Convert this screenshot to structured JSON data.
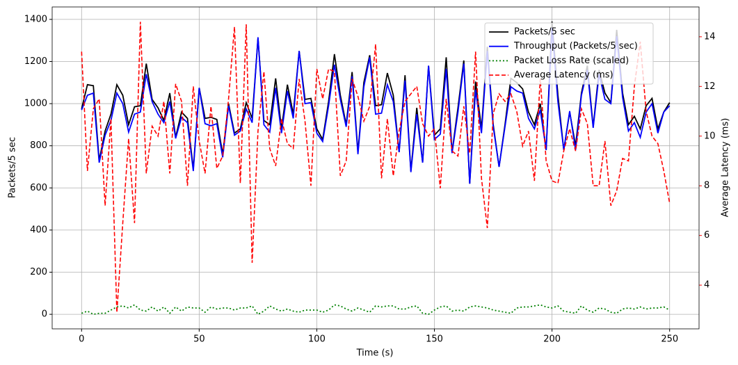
{
  "chart_data": {
    "type": "line",
    "xlabel": "Time (s)",
    "ylabel": "Packets/5 sec",
    "y2label": "Average Latency (ms)",
    "x": [
      0,
      2.5,
      5,
      7.5,
      10,
      12.5,
      15,
      17.5,
      20,
      22.5,
      25,
      27.5,
      30,
      32.5,
      35,
      37.5,
      40,
      42.5,
      45,
      47.5,
      50,
      52.5,
      55,
      57.5,
      60,
      62.5,
      65,
      67.5,
      70,
      72.5,
      75,
      77.5,
      80,
      82.5,
      85,
      87.5,
      90,
      92.5,
      95,
      97.5,
      100,
      102.5,
      105,
      107.5,
      110,
      112.5,
      115,
      117.5,
      120,
      122.5,
      125,
      127.5,
      130,
      132.5,
      135,
      137.5,
      140,
      142.5,
      145,
      147.5,
      150,
      152.5,
      155,
      157.5,
      160,
      162.5,
      165,
      167.5,
      170,
      172.5,
      175,
      177.5,
      180,
      182.5,
      185,
      187.5,
      190,
      192.5,
      195,
      197.5,
      200,
      202.5,
      205,
      207.5,
      210,
      212.5,
      215,
      217.5,
      220,
      222.5,
      225,
      227.5,
      230,
      232.5,
      235,
      237.5,
      240,
      242.5,
      245,
      247.5,
      250
    ],
    "series": [
      {
        "name": "Packets/5 sec",
        "color": "#000000",
        "dash": "solid",
        "width": 1.8,
        "values": [
          975,
          1090,
          1085,
          730,
          870,
          950,
          1090,
          1040,
          900,
          985,
          990,
          1190,
          1020,
          980,
          920,
          1050,
          840,
          960,
          930,
          690,
          1075,
          930,
          935,
          925,
          760,
          1000,
          860,
          880,
          1005,
          930,
          1310,
          920,
          900,
          1120,
          880,
          1090,
          950,
          1250,
          1020,
          1025,
          880,
          830,
          1010,
          1235,
          1040,
          900,
          1150,
          770,
          1100,
          1230,
          990,
          995,
          1145,
          1040,
          770,
          1135,
          680,
          980,
          720,
          1180,
          850,
          880,
          1220,
          770,
          980,
          1205,
          620,
          1105,
          880,
          1270,
          900,
          700,
          900,
          1120,
          1100,
          1070,
          960,
          900,
          1000,
          780,
          1390,
          1040,
          780,
          960,
          800,
          1050,
          1180,
          890,
          1160,
          1050,
          1005,
          1350,
          1050,
          900,
          940,
          880,
          990,
          1025,
          880,
          960,
          1005
        ]
      },
      {
        "name": "Throughput (Packets/5 sec)",
        "color": "#0000ff",
        "dash": "solid",
        "width": 1.8,
        "values": [
          970,
          1040,
          1050,
          720,
          850,
          920,
          1050,
          1000,
          865,
          950,
          960,
          1140,
          1010,
          950,
          910,
          1010,
          835,
          935,
          910,
          680,
          1075,
          905,
          895,
          905,
          745,
          990,
          850,
          870,
          975,
          910,
          1315,
          900,
          865,
          1075,
          860,
          1060,
          930,
          1250,
          1000,
          1005,
          860,
          820,
          990,
          1185,
          1020,
          890,
          1130,
          760,
          1080,
          1220,
          950,
          955,
          1090,
          1010,
          770,
          1110,
          675,
          950,
          720,
          1180,
          830,
          855,
          1165,
          765,
          960,
          1190,
          620,
          1065,
          860,
          1250,
          890,
          700,
          890,
          1080,
          1060,
          1050,
          930,
          880,
          970,
          780,
          1360,
          1010,
          780,
          965,
          780,
          1040,
          1160,
          885,
          1140,
          1020,
          1000,
          1320,
          1030,
          870,
          910,
          840,
          960,
          1000,
          860,
          960,
          990
        ]
      },
      {
        "name": "Packet Loss Rate (scaled)",
        "color": "#008000",
        "dash": "dotted",
        "width": 1.8,
        "values": [
          5,
          15,
          0,
          5,
          5,
          20,
          35,
          40,
          30,
          45,
          20,
          15,
          35,
          15,
          35,
          5,
          35,
          15,
          35,
          30,
          30,
          10,
          35,
          25,
          30,
          30,
          20,
          30,
          30,
          40,
          0,
          15,
          40,
          25,
          15,
          25,
          15,
          10,
          20,
          20,
          20,
          10,
          20,
          45,
          40,
          25,
          15,
          30,
          20,
          10,
          40,
          35,
          40,
          40,
          25,
          25,
          35,
          40,
          5,
          0,
          20,
          35,
          40,
          15,
          20,
          15,
          35,
          40,
          35,
          30,
          20,
          15,
          10,
          5,
          30,
          35,
          35,
          40,
          45,
          35,
          30,
          40,
          15,
          10,
          5,
          40,
          20,
          10,
          30,
          25,
          10,
          5,
          25,
          30,
          25,
          35,
          25,
          30,
          30,
          35,
          20
        ]
      },
      {
        "name": "Average Latency (ms)",
        "color": "#ff0000",
        "dash": "dashed",
        "width": 1.6,
        "axis": "y2",
        "values": [
          13.4,
          8.6,
          11.1,
          11.5,
          7.2,
          10.7,
          2.9,
          6.5,
          9.9,
          6.5,
          14.6,
          8.5,
          10.4,
          10.0,
          11.4,
          8.5,
          12.1,
          11.4,
          8.0,
          12.0,
          9.8,
          8.5,
          11.2,
          8.7,
          9.2,
          11.5,
          14.4,
          8.1,
          14.5,
          4.9,
          10.2,
          12.6,
          9.5,
          8.8,
          10.7,
          9.7,
          9.5,
          12.3,
          10.6,
          8.0,
          12.7,
          11.5,
          12.7,
          12.6,
          8.4,
          9.0,
          12.3,
          11.6,
          10.6,
          11.2,
          13.7,
          8.3,
          10.7,
          8.4,
          10.2,
          11.4,
          11.7,
          12.0,
          10.5,
          10.0,
          10.3,
          7.9,
          11.5,
          9.4,
          9.2,
          11.2,
          9.3,
          13.4,
          8.3,
          6.3,
          10.9,
          11.7,
          11.4,
          11.7,
          11.0,
          9.6,
          10.2,
          8.2,
          12.3,
          9.0,
          8.2,
          8.1,
          9.4,
          10.3,
          9.4,
          11.1,
          10.5,
          8.0,
          8.0,
          9.8,
          7.2,
          7.8,
          9.1,
          9.0,
          12.0,
          13.8,
          11.0,
          10.0,
          9.7,
          8.6,
          7.3
        ]
      }
    ],
    "xlim": [
      -12.5,
      262.5
    ],
    "xticks": [
      0,
      50,
      100,
      150,
      200,
      250
    ],
    "ylim": [
      -69,
      1459
    ],
    "yticks": [
      0,
      200,
      400,
      600,
      800,
      1000,
      1200,
      1400
    ],
    "y2lim": [
      2.24,
      15.2
    ],
    "y2ticks": [
      4,
      6,
      8,
      10,
      12,
      14
    ],
    "y2color": "#ff0000",
    "grid": true,
    "legend": "upper right"
  }
}
